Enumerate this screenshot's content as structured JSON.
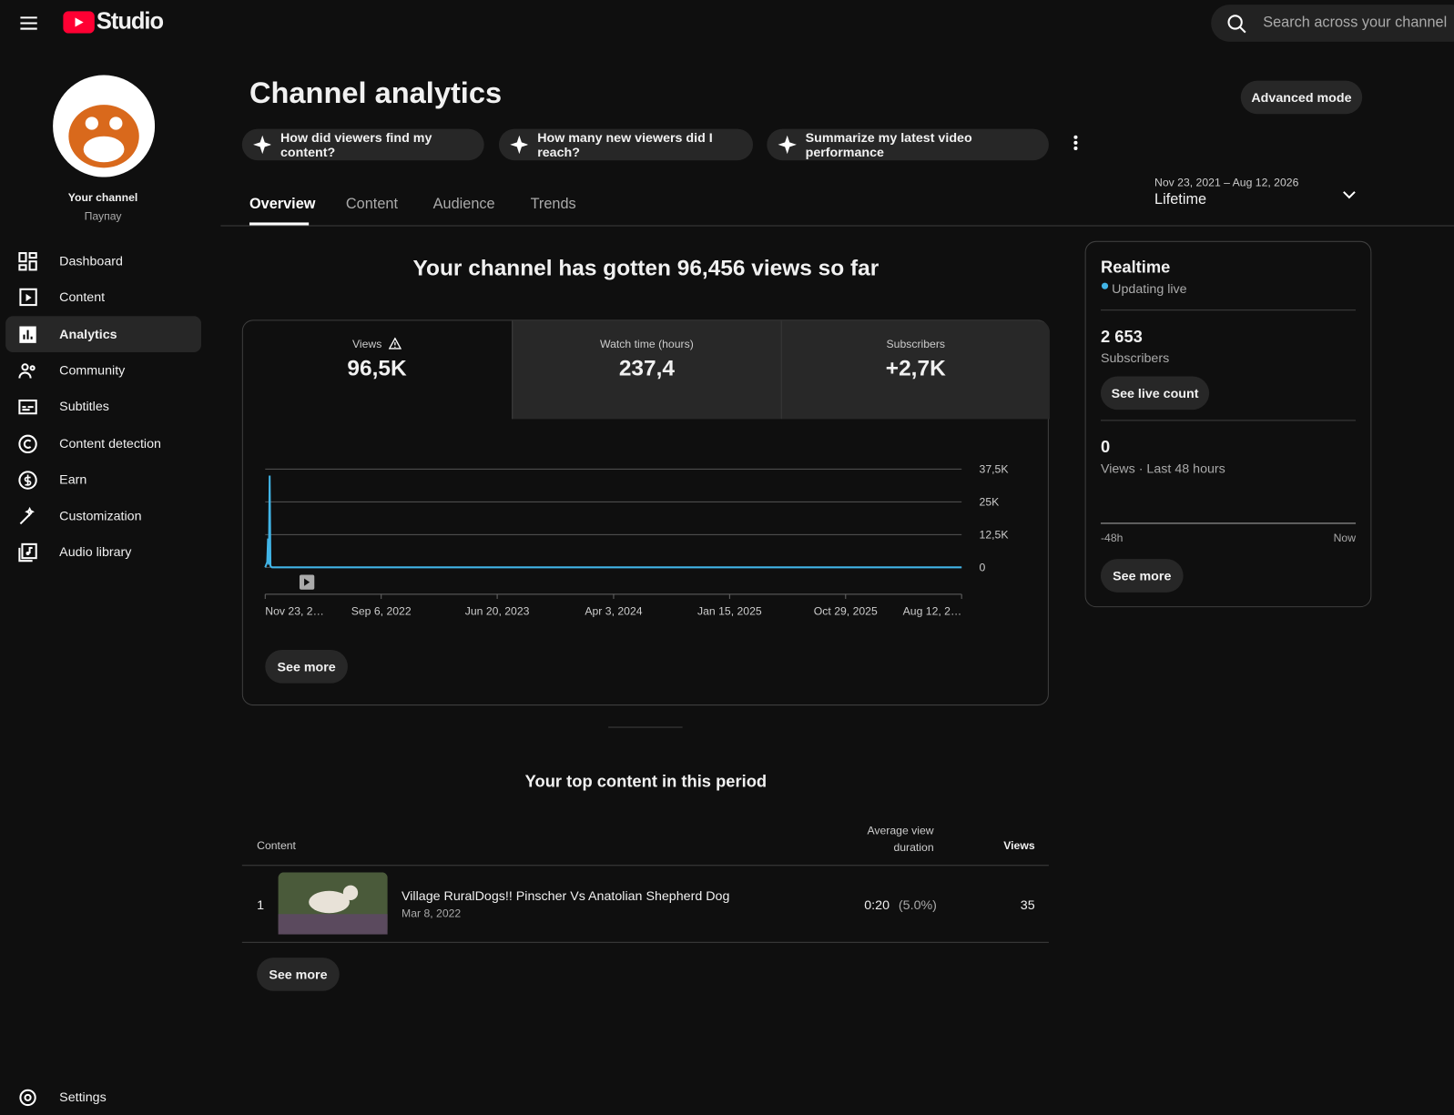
{
  "header": {
    "logo": "Studio",
    "search_placeholder": "Search across your channel"
  },
  "sidebar": {
    "channel_title": "Your channel",
    "channel_name": "Паупау",
    "nav": [
      "Dashboard",
      "Content",
      "Analytics",
      "Community",
      "Subtitles",
      "Content detection",
      "Earn",
      "Customization",
      "Audio library"
    ],
    "settings": "Settings"
  },
  "page": {
    "title": "Channel analytics",
    "advanced_mode": "Advanced mode",
    "prompts": [
      "How did viewers find my content?",
      "How many new viewers did I reach?",
      "Summarize my latest video performance"
    ],
    "tabs": [
      "Overview",
      "Content",
      "Audience",
      "Trends"
    ],
    "date_range": "Nov 23, 2021 – Aug 12, 2026",
    "period": "Lifetime",
    "headline": "Your channel has gotten 96,456 views so far",
    "chart_see_more": "See more"
  },
  "metrics": [
    {
      "label": "Views",
      "value": "96,5K"
    },
    {
      "label": "Watch time (hours)",
      "value": "237,4"
    },
    {
      "label": "Subscribers",
      "value": "+2,7K"
    }
  ],
  "chart_data": {
    "type": "line",
    "xlim": [
      "2021-11-23",
      "2026-08-12"
    ],
    "xticks": [
      {
        "value": "2021-11-23",
        "label": "Nov 23, 2…"
      },
      {
        "value": "2022-09-06",
        "label": "Sep 6, 2022"
      },
      {
        "value": "2023-06-20",
        "label": "Jun 20, 2023"
      },
      {
        "value": "2024-04-03",
        "label": "Apr 3, 2024"
      },
      {
        "value": "2025-01-15",
        "label": "Jan 15, 2025"
      },
      {
        "value": "2025-10-29",
        "label": "Oct 29, 2025"
      },
      {
        "value": "2026-08-12",
        "label": "Aug 12, 2…"
      }
    ],
    "ylim": [
      0,
      37500
    ],
    "yticks": [
      0,
      {
        "value": 12500,
        "label": "12,5K"
      },
      {
        "value": 25000,
        "label": "25K"
      },
      {
        "value": 37500,
        "label": "37,5K"
      }
    ],
    "grid": true,
    "series": [
      {
        "name": "Views",
        "color": "#41b4e6",
        "x": [
          "2021-11-23",
          "2021-11-28",
          "2021-11-30",
          "2021-12-02",
          "2021-12-04",
          "2021-12-06",
          "2021-12-10",
          "2026-08-12"
        ],
        "values": [
          0,
          2000,
          11000,
          1000,
          35000,
          500,
          0,
          0
        ]
      }
    ]
  },
  "top_content": {
    "title": "Your top content in this period",
    "columns": [
      "Content",
      "Average view duration",
      "Views"
    ],
    "rows": [
      {
        "rank": "1",
        "title": "Village RuralDogs!! Pinscher Vs Anatolian Shepherd Dog",
        "date": "Mar 8, 2022",
        "avg_duration": "0:20",
        "avg_percent": "(5.0%)",
        "views": "35"
      }
    ],
    "see_more": "See more"
  },
  "realtime": {
    "title": "Realtime",
    "status": "Updating live",
    "subscribers": "2 653",
    "subscribers_label": "Subscribers",
    "see_live_count": "See live count",
    "views": "0",
    "views_label": "Views · Last 48 hours",
    "axis_start": "-48h",
    "axis_end": "Now",
    "see_more": "See more"
  }
}
